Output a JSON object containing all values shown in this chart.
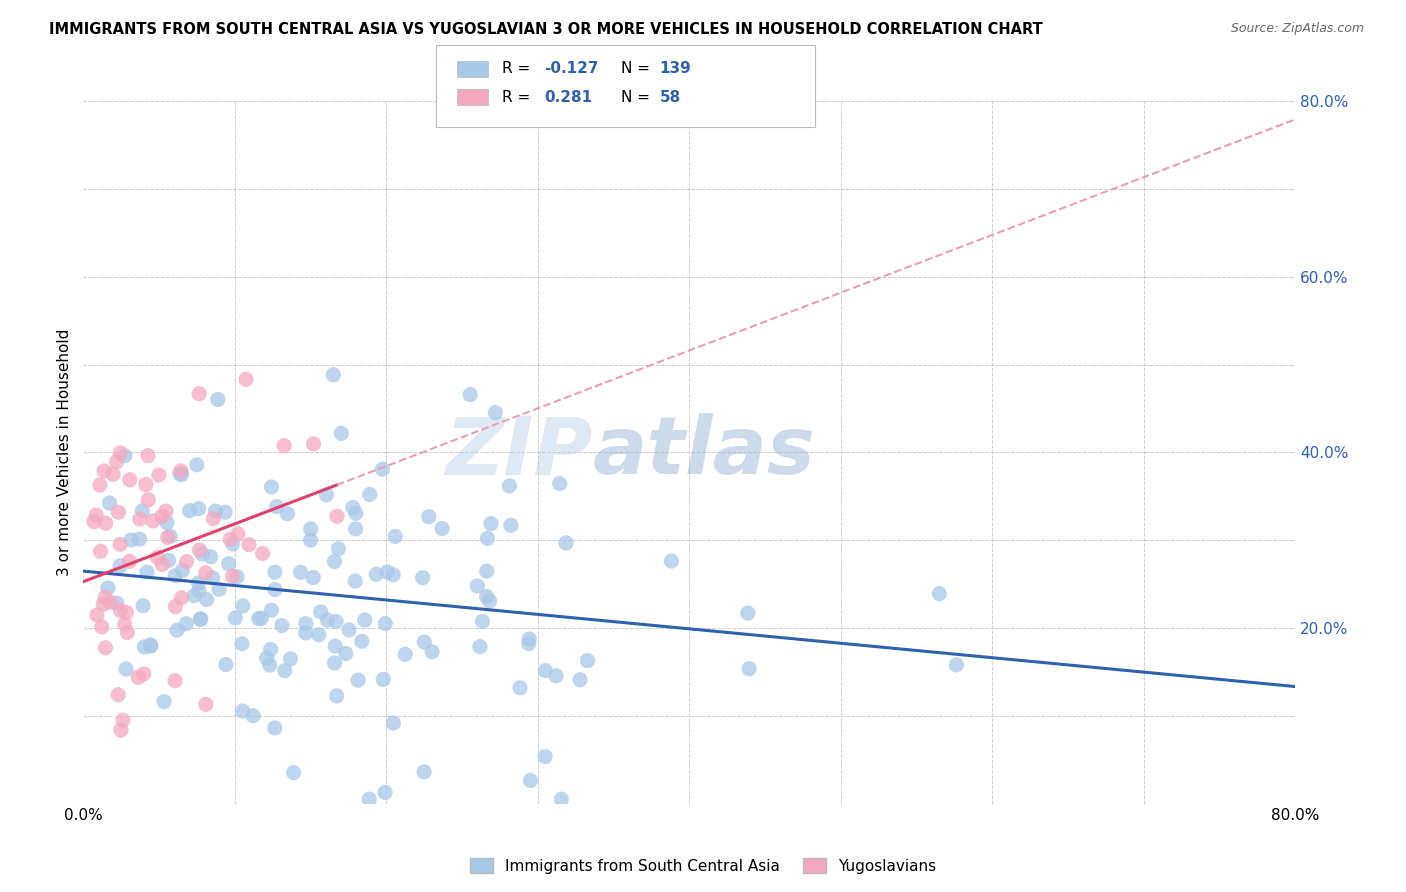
{
  "title": "IMMIGRANTS FROM SOUTH CENTRAL ASIA VS YUGOSLAVIAN 3 OR MORE VEHICLES IN HOUSEHOLD CORRELATION CHART",
  "source": "Source: ZipAtlas.com",
  "ylabel": "3 or more Vehicles in Household",
  "x_min": 0.0,
  "x_max": 0.8,
  "y_min": 0.0,
  "y_max": 0.8,
  "blue_color": "#A8C8E8",
  "pink_color": "#F4A8BE",
  "blue_line_color": "#3060B0",
  "pink_line_color": "#E04070",
  "pink_dash_color": "#E8A0B8",
  "R_blue": -0.127,
  "N_blue": 139,
  "R_pink": 0.281,
  "N_pink": 58,
  "legend_label_blue": "Immigrants from South Central Asia",
  "legend_label_pink": "Yugoslavians",
  "watermark_zip": "ZIP",
  "watermark_atlas": "atlas",
  "background_color": "#ffffff",
  "grid_color": "#cccccc",
  "blue_seed": 42,
  "pink_seed": 99
}
